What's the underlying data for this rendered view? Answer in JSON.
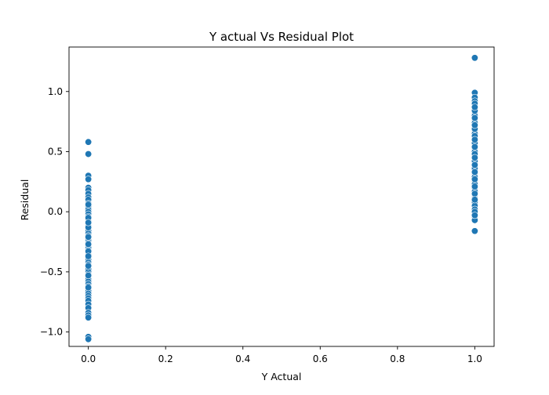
{
  "chart_data": {
    "type": "scatter",
    "title": "Y actual Vs Residual Plot",
    "xlabel": "Y Actual",
    "ylabel": "Residual",
    "xlim": [
      -0.05,
      1.05
    ],
    "ylim": [
      -1.12,
      1.37
    ],
    "x_ticks": [
      0.0,
      0.2,
      0.4,
      0.6,
      0.8,
      1.0
    ],
    "x_tick_labels": [
      "0.0",
      "0.2",
      "0.4",
      "0.6",
      "0.8",
      "1.0"
    ],
    "y_ticks": [
      -1.0,
      -0.5,
      0.0,
      0.5,
      1.0
    ],
    "y_tick_labels": [
      "−1.0",
      "−0.5",
      "0.0",
      "0.5",
      "1.0"
    ],
    "grid": false,
    "marker_color": "#1f77b4",
    "series": [
      {
        "x": [
          0,
          0,
          0,
          0,
          0,
          0,
          0,
          0,
          0,
          0,
          0,
          0,
          0,
          0,
          0,
          0,
          0,
          0,
          0,
          0,
          0,
          0,
          0,
          0,
          0,
          0,
          0,
          0,
          0,
          0,
          0,
          0,
          0,
          0,
          0,
          0,
          0,
          0,
          0,
          0,
          0,
          0,
          0,
          0,
          0,
          0,
          0,
          0,
          0,
          0,
          0,
          0,
          0,
          0,
          0,
          0,
          0,
          0,
          0,
          0,
          0,
          0,
          0,
          0,
          0,
          0,
          0,
          0
        ],
        "y": [
          0.58,
          0.48,
          0.3,
          0.27,
          0.2,
          0.18,
          0.15,
          0.12,
          0.1,
          0.07,
          0.04,
          0.02,
          0.0,
          -0.02,
          -0.04,
          -0.06,
          -0.08,
          -0.1,
          -0.12,
          -0.14,
          -0.16,
          -0.18,
          -0.2,
          -0.22,
          -0.24,
          -0.26,
          -0.28,
          -0.3,
          -0.32,
          -0.34,
          -0.36,
          -0.38,
          -0.4,
          -0.42,
          -0.44,
          -0.46,
          -0.48,
          -0.5,
          -0.52,
          -0.54,
          -0.56,
          -0.58,
          -0.6,
          -0.62,
          -0.64,
          -0.66,
          -0.68,
          -0.7,
          -0.72,
          -0.74,
          -0.77,
          -0.8,
          -0.84,
          -0.86,
          -0.88,
          -1.04,
          -1.06,
          -0.53,
          -0.33,
          -0.13,
          -0.05,
          0.06,
          -0.27,
          -0.45,
          -0.63,
          -0.37,
          -0.21,
          -0.09
        ]
      },
      {
        "x": [
          1,
          1,
          1,
          1,
          1,
          1,
          1,
          1,
          1,
          1,
          1,
          1,
          1,
          1,
          1,
          1,
          1,
          1,
          1,
          1,
          1,
          1,
          1,
          1,
          1,
          1,
          1,
          1,
          1,
          1,
          1,
          1,
          1,
          1,
          1,
          1,
          1,
          1,
          1,
          1,
          1,
          1,
          1,
          1,
          1,
          1,
          1,
          1,
          1,
          1,
          1,
          1,
          1,
          1,
          1,
          1,
          1,
          1,
          1,
          1
        ],
        "y": [
          1.28,
          0.99,
          0.95,
          0.92,
          0.89,
          0.86,
          0.83,
          0.8,
          0.77,
          0.74,
          0.71,
          0.68,
          0.65,
          0.62,
          0.59,
          0.56,
          0.53,
          0.5,
          0.47,
          0.44,
          0.41,
          0.38,
          0.35,
          0.32,
          0.29,
          0.26,
          0.23,
          0.2,
          0.17,
          0.14,
          0.11,
          0.08,
          0.05,
          0.02,
          -0.01,
          -0.04,
          -0.07,
          -0.16,
          0.36,
          0.42,
          0.57,
          0.63,
          0.69,
          0.84,
          0.9,
          0.27,
          0.21,
          0.15,
          0.1,
          0.0,
          -0.03,
          0.33,
          0.48,
          0.54,
          0.6,
          0.72,
          0.78,
          0.87,
          0.39,
          0.45
        ]
      }
    ]
  }
}
